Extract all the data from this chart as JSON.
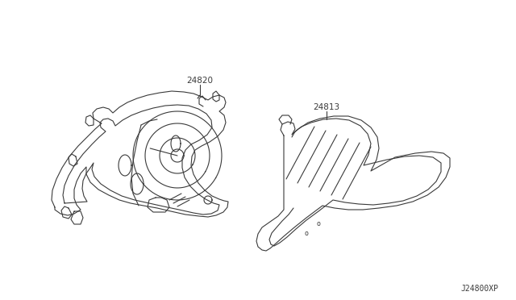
{
  "background_color": "#ffffff",
  "line_color": "#3a3a3a",
  "line_width": 0.8,
  "label_24820": "24820",
  "label_24813": "24813",
  "ref_code": "J24800XP",
  "label_fontsize": 7.5,
  "ref_fontsize": 7
}
